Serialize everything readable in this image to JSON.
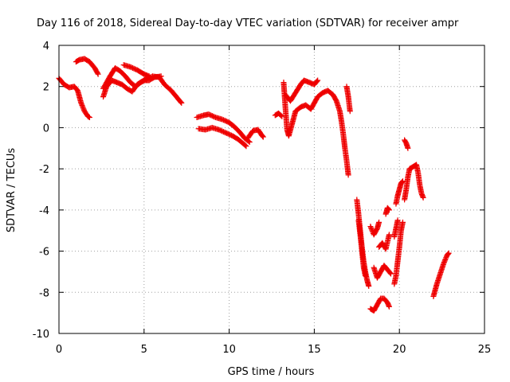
{
  "chart_data": {
    "type": "scatter",
    "title": "Day 116 of 2018, Sidereal Day-to-day VTEC variation (SDTVAR) for receiver ampr",
    "xlabel": "GPS time / hours",
    "ylabel": "SDTVAR / TECUs",
    "xlim": [
      0,
      25
    ],
    "ylim": [
      -10,
      4
    ],
    "xticks": [
      "0",
      "5",
      "10",
      "15",
      "20",
      "25"
    ],
    "yticks": [
      "-10",
      "-8",
      "-6",
      "-4",
      "-2",
      "0",
      "2",
      "4"
    ],
    "xtick_values": [
      0,
      5,
      10,
      15,
      20,
      25
    ],
    "ytick_values": [
      -10,
      -8,
      -6,
      -4,
      -2,
      0,
      2,
      4
    ],
    "grid": true,
    "marker": "plus",
    "marker_color": "#ee0000",
    "series": [
      {
        "segments": [
          [
            [
              0.0,
              2.4
            ],
            [
              0.3,
              2.1
            ],
            [
              0.6,
              1.95
            ],
            [
              0.9,
              2.0
            ],
            [
              1.1,
              1.8
            ],
            [
              1.3,
              1.2
            ],
            [
              1.5,
              0.8
            ],
            [
              1.7,
              0.55
            ],
            [
              1.8,
              0.5
            ]
          ],
          [
            [
              1.0,
              3.2
            ],
            [
              1.2,
              3.3
            ],
            [
              1.5,
              3.35
            ],
            [
              1.8,
              3.2
            ],
            [
              2.1,
              2.9
            ],
            [
              2.3,
              2.6
            ]
          ],
          [
            [
              2.6,
              1.5
            ],
            [
              2.8,
              2.0
            ],
            [
              3.1,
              2.3
            ],
            [
              3.4,
              2.2
            ],
            [
              3.7,
              2.1
            ],
            [
              4.0,
              1.9
            ],
            [
              4.3,
              1.75
            ],
            [
              4.6,
              2.1
            ],
            [
              5.0,
              2.3
            ],
            [
              5.3,
              2.3
            ],
            [
              5.6,
              2.45
            ],
            [
              6.0,
              2.5
            ]
          ],
          [
            [
              2.6,
              1.9
            ],
            [
              3.0,
              2.5
            ],
            [
              3.3,
              2.9
            ],
            [
              3.6,
              2.75
            ],
            [
              3.9,
              2.5
            ],
            [
              4.2,
              2.2
            ],
            [
              4.5,
              2.0
            ],
            [
              4.8,
              2.2
            ],
            [
              5.1,
              2.35
            ],
            [
              5.5,
              2.5
            ],
            [
              5.9,
              2.45
            ],
            [
              6.2,
              2.1
            ],
            [
              6.6,
              1.8
            ],
            [
              7.0,
              1.4
            ],
            [
              7.2,
              1.2
            ]
          ],
          [
            [
              3.8,
              3.05
            ],
            [
              4.2,
              2.95
            ],
            [
              4.6,
              2.8
            ],
            [
              5.0,
              2.6
            ],
            [
              5.3,
              2.5
            ]
          ],
          [
            [
              8.1,
              0.5
            ],
            [
              8.5,
              0.6
            ],
            [
              8.8,
              0.65
            ],
            [
              9.2,
              0.5
            ],
            [
              9.6,
              0.4
            ],
            [
              10.0,
              0.25
            ],
            [
              10.3,
              0.05
            ],
            [
              10.6,
              -0.2
            ],
            [
              10.9,
              -0.5
            ],
            [
              11.2,
              -0.7
            ]
          ],
          [
            [
              8.2,
              -0.05
            ],
            [
              8.6,
              -0.1
            ],
            [
              9.0,
              0.0
            ],
            [
              9.4,
              -0.1
            ],
            [
              9.8,
              -0.25
            ],
            [
              10.2,
              -0.4
            ],
            [
              10.5,
              -0.55
            ],
            [
              10.8,
              -0.75
            ],
            [
              11.0,
              -0.9
            ]
          ],
          [
            [
              11.1,
              -0.5
            ],
            [
              11.4,
              -0.15
            ],
            [
              11.7,
              -0.1
            ],
            [
              11.9,
              -0.35
            ],
            [
              12.0,
              -0.45
            ]
          ],
          [
            [
              12.7,
              0.6
            ],
            [
              12.9,
              0.7
            ],
            [
              13.1,
              0.55
            ]
          ],
          [
            [
              13.2,
              2.2
            ],
            [
              13.3,
              1.0
            ],
            [
              13.4,
              -0.1
            ],
            [
              13.5,
              -0.4
            ],
            [
              13.7,
              0.2
            ],
            [
              13.9,
              0.8
            ],
            [
              14.2,
              1.0
            ],
            [
              14.5,
              1.1
            ],
            [
              14.8,
              0.9
            ],
            [
              15.0,
              1.2
            ],
            [
              15.2,
              1.5
            ],
            [
              15.5,
              1.7
            ],
            [
              15.8,
              1.8
            ],
            [
              16.1,
              1.6
            ],
            [
              16.3,
              1.3
            ],
            [
              16.5,
              0.8
            ],
            [
              16.6,
              0.3
            ],
            [
              16.7,
              -0.3
            ],
            [
              16.8,
              -1.0
            ],
            [
              16.9,
              -1.6
            ],
            [
              17.0,
              -2.3
            ]
          ],
          [
            [
              13.3,
              1.6
            ],
            [
              13.6,
              1.3
            ],
            [
              13.9,
              1.7
            ],
            [
              14.2,
              2.1
            ],
            [
              14.4,
              2.3
            ],
            [
              14.7,
              2.2
            ],
            [
              15.0,
              2.1
            ],
            [
              15.2,
              2.3
            ]
          ],
          [
            [
              16.9,
              2.0
            ],
            [
              17.0,
              1.5
            ],
            [
              17.1,
              0.8
            ]
          ],
          [
            [
              17.5,
              -3.5
            ],
            [
              17.6,
              -4.2
            ],
            [
              17.7,
              -5.0
            ],
            [
              17.8,
              -5.8
            ],
            [
              17.9,
              -6.5
            ],
            [
              18.0,
              -7.0
            ],
            [
              18.1,
              -7.4
            ],
            [
              18.2,
              -7.7
            ]
          ],
          [
            [
              17.6,
              -4.5
            ],
            [
              17.7,
              -5.2
            ],
            [
              17.8,
              -6.0
            ],
            [
              17.9,
              -6.8
            ],
            [
              18.0,
              -7.2
            ]
          ],
          [
            [
              18.3,
              -4.8
            ],
            [
              18.5,
              -5.2
            ],
            [
              18.7,
              -4.9
            ],
            [
              18.8,
              -4.6
            ]
          ],
          [
            [
              18.3,
              -8.8
            ],
            [
              18.5,
              -8.9
            ],
            [
              18.7,
              -8.6
            ],
            [
              18.9,
              -8.3
            ],
            [
              19.1,
              -8.3
            ],
            [
              19.3,
              -8.5
            ],
            [
              19.4,
              -8.7
            ]
          ],
          [
            [
              18.5,
              -6.8
            ],
            [
              18.7,
              -7.3
            ],
            [
              18.9,
              -7.0
            ],
            [
              19.1,
              -6.7
            ],
            [
              19.3,
              -6.9
            ],
            [
              19.5,
              -7.1
            ]
          ],
          [
            [
              18.8,
              -5.8
            ],
            [
              19.0,
              -5.6
            ],
            [
              19.2,
              -5.9
            ],
            [
              19.4,
              -5.2
            ]
          ],
          [
            [
              19.2,
              -4.2
            ],
            [
              19.3,
              -3.9
            ],
            [
              19.4,
              -4.0
            ]
          ],
          [
            [
              19.7,
              -7.6
            ],
            [
              19.8,
              -7.2
            ],
            [
              19.9,
              -6.5
            ],
            [
              20.0,
              -5.8
            ],
            [
              20.1,
              -5.0
            ],
            [
              20.2,
              -4.6
            ]
          ],
          [
            [
              19.7,
              -5.3
            ],
            [
              19.8,
              -4.9
            ],
            [
              19.9,
              -4.5
            ]
          ],
          [
            [
              19.8,
              -3.7
            ],
            [
              19.9,
              -3.3
            ],
            [
              20.0,
              -3.0
            ],
            [
              20.1,
              -2.7
            ],
            [
              20.2,
              -2.6
            ]
          ],
          [
            [
              20.3,
              -0.6
            ],
            [
              20.4,
              -0.75
            ],
            [
              20.5,
              -1.0
            ]
          ],
          [
            [
              20.3,
              -3.5
            ],
            [
              20.4,
              -3.0
            ],
            [
              20.5,
              -2.4
            ],
            [
              20.6,
              -2.0
            ],
            [
              20.8,
              -1.9
            ],
            [
              21.0,
              -1.8
            ],
            [
              21.1,
              -2.2
            ],
            [
              21.2,
              -2.8
            ],
            [
              21.3,
              -3.2
            ],
            [
              21.4,
              -3.4
            ]
          ],
          [
            [
              22.0,
              -8.2
            ],
            [
              22.2,
              -7.6
            ],
            [
              22.4,
              -7.1
            ],
            [
              22.6,
              -6.6
            ],
            [
              22.8,
              -6.2
            ],
            [
              22.9,
              -6.1
            ]
          ]
        ]
      }
    ]
  }
}
